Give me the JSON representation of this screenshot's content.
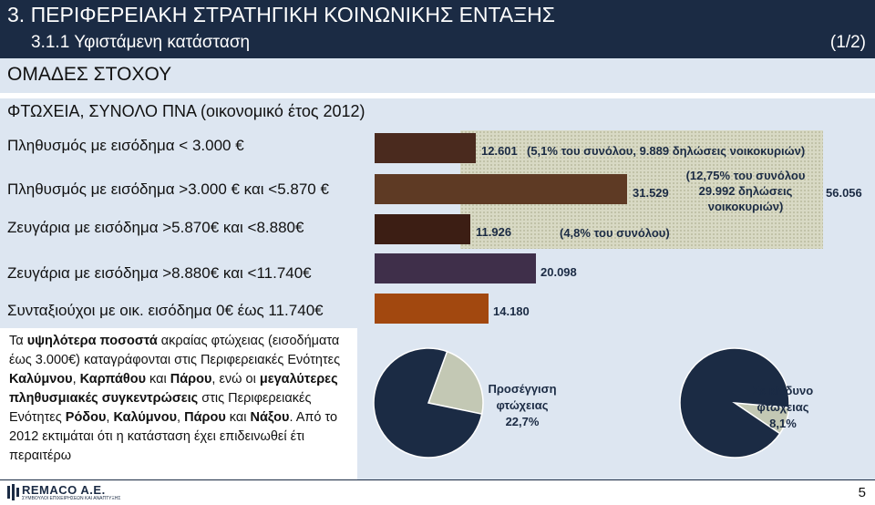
{
  "header": {
    "title": "3. ΠΕΡΙΦΕΡΕΙΑΚΗ ΣΤΡΑΤΗΓΙΚΗ ΚΟΙΝΩΝΙΚΗΣ ΕΝΤΑΞΗΣ",
    "subtitle": "3.1.1 Υφιστάμενη κατάσταση",
    "page_indicator": "(1/2)"
  },
  "section": {
    "title": "ΟΜΑΔΕΣ ΣΤΟΧΟΥ",
    "subtitle": "ΦΤΩΧΕΙΑ, ΣΥΝΟΛΟ ΠΝΑ (οικονομικό έτος 2012)"
  },
  "chart_data": [
    {
      "type": "bar",
      "orientation": "horizontal",
      "categories": [
        "Πληθυσμός με εισόδημα < 3.000 €",
        "Πληθυσμός με εισόδημα >3.000 € και <5.870 €",
        "Ζευγάρια με εισόδημα >5.870€ και <8.880€",
        "Ζευγάρια με εισόδημα >8.880€ και <11.740€",
        "Συνταξιούχοι με οικ. εισόδημα 0€ έως 11.740€"
      ],
      "values": [
        12601,
        31529,
        11926,
        20098,
        14180
      ],
      "value_labels": [
        "12.601",
        "31.529",
        "11.926",
        "20.098",
        "14.180"
      ],
      "colors": [
        "#4a2a1e",
        "#5e3a24",
        "#3c1e14",
        "#3f2f4a",
        "#a2480f"
      ],
      "annotations": {
        "row1": "(5,1% του συνόλου, 9.889 δηλώσεις νοικοκυριών)",
        "row2_lines": [
          "(12,75% του συνόλου",
          "29.992 δηλώσεις",
          "νοικοκυριών)"
        ],
        "row2_total": "56.056",
        "row3": "(4,8% του συνόλου)"
      }
    },
    {
      "type": "pie",
      "slices": [
        {
          "label": "Προσέγγιση φτώχειας",
          "value": 22.7,
          "color": "#c3c8b4"
        },
        {
          "label": "",
          "value": 77.3,
          "color": "#1b2b44"
        }
      ],
      "label_lines": [
        "Προσέγγιση",
        "φτώχειας",
        "22,7%"
      ]
    },
    {
      "type": "pie",
      "slices": [
        {
          "label": "Σε κίνδυνο φτώχειας",
          "value": 8.1,
          "color": "#c3c8b4"
        },
        {
          "label": "",
          "value": 91.9,
          "color": "#1b2b44"
        }
      ],
      "label_lines": [
        "Σε κίνδυνο",
        "φτώχειας",
        "8,1%"
      ]
    }
  ],
  "paragraph": {
    "p1": "Τα ",
    "b1": "υψηλότερα ποσοστά",
    "p2": " ακραίας φτώχειας (εισοδήματα έως 3.000€) καταγράφονται στις Περιφερειακές Ενότητες ",
    "b2": "Καλύμνου",
    "p3": ", ",
    "b3": "Καρπάθου",
    "p4": "  και ",
    "b4": "Πάρου",
    "p5": ", ενώ οι ",
    "b5": "μεγαλύτερες πληθυσμιακές συγκεντρώσεις",
    "p6": " στις Περιφερειακές Ενότητες ",
    "b6": "Ρόδου",
    "p7": ", ",
    "b7": "Καλύμνου",
    "p8": ", ",
    "b8": "Πάρου",
    "p9": " και ",
    "b9": "Νάξου",
    "p10": ". Από το 2012 εκτιμάται ότι η κατάσταση έχει επιδεινωθεί έτι περαιτέρω"
  },
  "footer": {
    "logo": "REMACO A.E.",
    "logo_tagline": "ΣΥΜΒΟΥΛΟΙ ΕΠΙΧΕΙΡΗΣΕΩΝ ΚΑΙ ΑΝΑΠΤΥΞΗΣ",
    "page_number": "5"
  }
}
